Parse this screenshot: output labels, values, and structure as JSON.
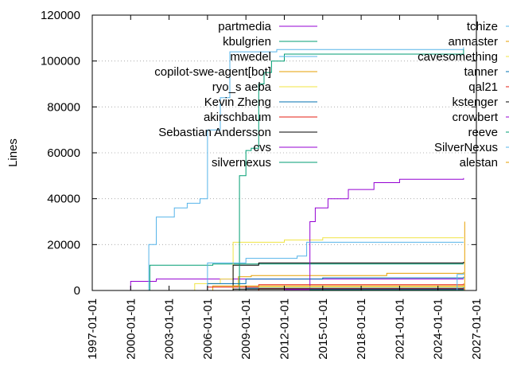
{
  "chart_data": {
    "type": "line",
    "title": "",
    "ylabel": "Lines",
    "xlabel": "",
    "ylim": [
      0,
      120000
    ],
    "xlim": [
      "1997-01-01",
      "2027-01-01"
    ],
    "y_ticks": [
      "0",
      "20000",
      "40000",
      "60000",
      "80000",
      "100000",
      "120000"
    ],
    "x_ticks": [
      "1997-01-01",
      "2000-01-01",
      "2003-01-01",
      "2006-01-01",
      "2009-01-01",
      "2012-01-01",
      "2015-01-01",
      "2018-01-01",
      "2021-01-01",
      "2024-01-01",
      "2027-01-01"
    ],
    "grid": "horizontal dotted at 40000 and 20000",
    "legend_position": "top, inside, two columns",
    "series": [
      {
        "name": "partmedia",
        "color": "#9400d3",
        "points": [
          [
            "1999-06-01",
            0
          ],
          [
            "2000-01-01",
            4000
          ],
          [
            "2002-01-01",
            5000
          ],
          [
            "2009-01-01",
            5000
          ],
          [
            "2026-01-01",
            5000
          ]
        ]
      },
      {
        "name": "kbulgrien",
        "color": "#009e73",
        "points": [
          [
            "2001-06-01",
            0
          ],
          [
            "2001-07-01",
            11000
          ],
          [
            "2006-01-01",
            11000
          ],
          [
            "2006-06-01",
            11500
          ],
          [
            "2026-01-01",
            11500
          ]
        ]
      },
      {
        "name": "mwedel",
        "color": "#56b4e9",
        "points": [
          [
            "2001-01-01",
            0
          ],
          [
            "2001-06-01",
            20000
          ],
          [
            "2002-01-01",
            32000
          ],
          [
            "2003-06-01",
            36000
          ],
          [
            "2004-06-01",
            38000
          ],
          [
            "2005-06-01",
            40000
          ],
          [
            "2006-01-01",
            70000
          ],
          [
            "2007-01-01",
            84000
          ],
          [
            "2007-10-01",
            104000
          ],
          [
            "2008-06-01",
            104000
          ],
          [
            "2011-06-01",
            105000
          ],
          [
            "2025-01-01",
            105000
          ],
          [
            "2026-01-01",
            106000
          ]
        ]
      },
      {
        "name": "copilot-swe-agent[bot]",
        "color": "#e69f00",
        "points": [
          [
            "2006-01-01",
            0
          ],
          [
            "2006-06-01",
            2000
          ],
          [
            "2008-06-01",
            6000
          ],
          [
            "2009-06-01",
            6500
          ],
          [
            "2020-01-01",
            7500
          ],
          [
            "2026-01-01",
            8000
          ]
        ]
      },
      {
        "name": "ryo_s aeba",
        "color": "#f0e442",
        "points": [
          [
            "2004-01-01",
            0
          ],
          [
            "2005-01-01",
            3000
          ],
          [
            "2007-01-01",
            5000
          ],
          [
            "2008-01-01",
            21000
          ],
          [
            "2012-01-01",
            22000
          ],
          [
            "2015-01-01",
            23000
          ],
          [
            "2026-01-01",
            23000
          ]
        ]
      },
      {
        "name": "Kevin Zheng",
        "color": "#0072b2",
        "points": [
          [
            "2003-01-01",
            0
          ],
          [
            "2006-01-01",
            3000
          ],
          [
            "2009-01-01",
            5000
          ],
          [
            "2015-01-01",
            5500
          ],
          [
            "2026-01-01",
            6000
          ]
        ]
      },
      {
        "name": "akirschbaum",
        "color": "#e51e10",
        "points": [
          [
            "2005-01-01",
            0
          ],
          [
            "2006-01-01",
            1500
          ],
          [
            "2010-01-01",
            2500
          ],
          [
            "2026-01-01",
            3000
          ]
        ]
      },
      {
        "name": "Sebastian Andersson",
        "color": "#000000",
        "points": [
          [
            "2007-06-01",
            0
          ],
          [
            "2008-01-01",
            11000
          ],
          [
            "2010-01-01",
            12000
          ],
          [
            "2026-01-01",
            12500
          ]
        ]
      },
      {
        "name": "cvs",
        "color": "#9400d3",
        "points": [
          [
            "2013-10-01",
            0
          ],
          [
            "2014-01-01",
            30000
          ],
          [
            "2014-06-01",
            36000
          ],
          [
            "2015-06-01",
            40000
          ],
          [
            "2017-01-01",
            44000
          ],
          [
            "2019-01-01",
            47000
          ],
          [
            "2021-01-01",
            48500
          ],
          [
            "2026-01-01",
            49000
          ]
        ]
      },
      {
        "name": "silvernexus",
        "color": "#009e73",
        "points": [
          [
            "2008-06-01",
            0
          ],
          [
            "2008-07-01",
            50000
          ],
          [
            "2009-01-01",
            61000
          ],
          [
            "2009-06-01",
            62000
          ],
          [
            "2010-01-01",
            90000
          ],
          [
            "2010-06-01",
            95000
          ],
          [
            "2011-01-01",
            100000
          ],
          [
            "2012-01-01",
            103000
          ],
          [
            "2026-01-01",
            105000
          ]
        ]
      },
      {
        "name": "tchize",
        "color": "#56b4e9",
        "points": [
          [
            "2005-01-01",
            0
          ],
          [
            "2006-01-01",
            12000
          ],
          [
            "2009-01-01",
            14000
          ],
          [
            "2013-01-01",
            15000
          ],
          [
            "2013-10-01",
            21000
          ],
          [
            "2026-01-01",
            21000
          ]
        ]
      },
      {
        "name": "anmaster",
        "color": "#e69f00",
        "points": [
          [
            "2006-01-01",
            0
          ],
          [
            "2008-01-01",
            2000
          ],
          [
            "2026-01-01",
            2500
          ]
        ]
      },
      {
        "name": "cavesomething",
        "color": "#f0e442",
        "points": [
          [
            "2007-01-01",
            0
          ],
          [
            "2010-01-01",
            1500
          ],
          [
            "2026-01-01",
            2000
          ]
        ]
      },
      {
        "name": "tanner",
        "color": "#0072b2",
        "points": [
          [
            "2006-01-01",
            0
          ],
          [
            "2009-01-01",
            1000
          ],
          [
            "2026-01-01",
            1500
          ]
        ]
      },
      {
        "name": "qal21",
        "color": "#e51e10",
        "points": [
          [
            "2008-01-01",
            0
          ],
          [
            "2010-01-01",
            800
          ],
          [
            "2026-01-01",
            1000
          ]
        ]
      },
      {
        "name": "kstenger",
        "color": "#000000",
        "points": [
          [
            "2005-01-01",
            0
          ],
          [
            "2008-01-01",
            600
          ],
          [
            "2026-01-01",
            800
          ]
        ]
      },
      {
        "name": "crowbert",
        "color": "#9400d3",
        "points": [
          [
            "2009-01-01",
            0
          ],
          [
            "2012-01-01",
            400
          ],
          [
            "2026-01-01",
            600
          ]
        ]
      },
      {
        "name": "reeve",
        "color": "#009e73",
        "points": [
          [
            "2011-01-01",
            0
          ],
          [
            "2014-01-01",
            300
          ],
          [
            "2026-01-01",
            400
          ]
        ]
      },
      {
        "name": "SilverNexus",
        "color": "#56b4e9",
        "points": [
          [
            "2025-06-01",
            0
          ],
          [
            "2025-07-01",
            7000
          ],
          [
            "2026-01-01",
            7500
          ]
        ]
      },
      {
        "name": "alestan",
        "color": "#e69f00",
        "points": [
          [
            "2026-01-01",
            0
          ],
          [
            "2026-02-01",
            30000
          ]
        ]
      }
    ]
  }
}
